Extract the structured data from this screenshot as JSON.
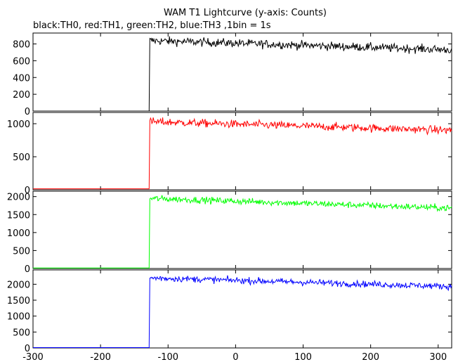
{
  "chart_data": {
    "type": "line",
    "title": "WAM T1 Lightcurve (y-axis: Counts)",
    "subtitle": "black:TH0, red:TH1, green:TH2, blue:TH3 ,1bin = 1s",
    "xlabel": "",
    "ylabel": "",
    "xlim": [
      -300,
      320
    ],
    "x_ticks": [
      "-300",
      "-200",
      "-100",
      "0",
      "100",
      "200",
      "300"
    ],
    "x_tick_values": [
      -300,
      -200,
      -100,
      0,
      100,
      200,
      300
    ],
    "trigger_time": -127,
    "grid": false,
    "series": [
      {
        "color": "#000000",
        "ylim": [
          0,
          930
        ],
        "y_ticks": [
          "0",
          "200",
          "400",
          "600",
          "800"
        ],
        "y_tick_values": [
          0,
          200,
          400,
          600,
          800
        ],
        "baseline": 0,
        "peak": 840,
        "end_level": 730,
        "noise": 25
      },
      {
        "color": "#ff0000",
        "ylim": [
          0,
          1170
        ],
        "y_ticks": [
          "0",
          "500",
          "1000"
        ],
        "y_tick_values": [
          0,
          500,
          1000
        ],
        "baseline": 15,
        "peak": 1030,
        "end_level": 900,
        "noise": 30
      },
      {
        "color": "#00ff00",
        "ylim": [
          0,
          2150
        ],
        "y_ticks": [
          "0",
          "500",
          "1000",
          "1500",
          "2000"
        ],
        "y_tick_values": [
          0,
          500,
          1000,
          1500,
          2000
        ],
        "baseline": 15,
        "peak": 1950,
        "end_level": 1680,
        "noise": 45
      },
      {
        "color": "#0000ff",
        "ylim": [
          0,
          2450
        ],
        "y_ticks": [
          "0",
          "500",
          "1000",
          "1500",
          "2000"
        ],
        "y_tick_values": [
          0,
          500,
          1000,
          1500,
          2000
        ],
        "baseline": 10,
        "peak": 2200,
        "end_level": 1930,
        "noise": 50
      }
    ]
  }
}
